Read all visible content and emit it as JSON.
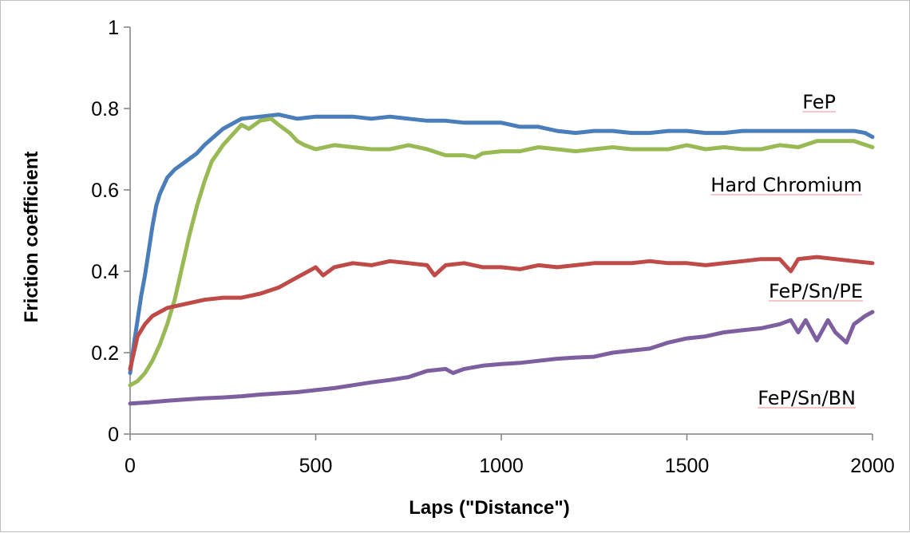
{
  "chart_data": {
    "type": "line",
    "title": "",
    "xlabel": "Laps (\"Distance\")",
    "ylabel": "Friction coefficient",
    "xlim": [
      0,
      2000
    ],
    "ylim": [
      0,
      1
    ],
    "x_ticks": [
      "0",
      "500",
      "1000",
      "1500",
      "2000"
    ],
    "y_ticks": [
      "0",
      "0.2",
      "0.4",
      "0.6",
      "0.8",
      "1"
    ],
    "grid": false,
    "legend": "none (series labelled directly on plot)",
    "series": [
      {
        "name": "FeP",
        "color": "#4a7ebb",
        "x": [
          0,
          10,
          20,
          30,
          40,
          50,
          60,
          70,
          80,
          100,
          120,
          150,
          180,
          200,
          250,
          300,
          350,
          400,
          450,
          500,
          550,
          600,
          650,
          700,
          750,
          800,
          850,
          900,
          950,
          1000,
          1050,
          1100,
          1150,
          1200,
          1250,
          1300,
          1350,
          1400,
          1450,
          1500,
          1550,
          1600,
          1650,
          1700,
          1750,
          1800,
          1850,
          1900,
          1950,
          1980,
          2000
        ],
        "y": [
          0.15,
          0.22,
          0.28,
          0.34,
          0.39,
          0.45,
          0.51,
          0.56,
          0.59,
          0.63,
          0.65,
          0.67,
          0.69,
          0.71,
          0.75,
          0.775,
          0.78,
          0.785,
          0.775,
          0.78,
          0.78,
          0.78,
          0.775,
          0.78,
          0.775,
          0.77,
          0.77,
          0.765,
          0.765,
          0.765,
          0.755,
          0.755,
          0.745,
          0.74,
          0.745,
          0.745,
          0.74,
          0.74,
          0.745,
          0.745,
          0.74,
          0.74,
          0.745,
          0.745,
          0.745,
          0.745,
          0.745,
          0.745,
          0.745,
          0.74,
          0.73
        ]
      },
      {
        "name": "Hard Chromium",
        "color": "#98b954",
        "x": [
          0,
          20,
          40,
          60,
          80,
          100,
          120,
          140,
          160,
          180,
          200,
          220,
          250,
          280,
          300,
          320,
          350,
          380,
          400,
          430,
          450,
          470,
          500,
          550,
          600,
          650,
          700,
          750,
          800,
          850,
          900,
          930,
          950,
          1000,
          1050,
          1100,
          1150,
          1200,
          1250,
          1300,
          1350,
          1400,
          1450,
          1500,
          1550,
          1600,
          1650,
          1700,
          1750,
          1800,
          1850,
          1900,
          1950,
          2000
        ],
        "y": [
          0.12,
          0.13,
          0.15,
          0.18,
          0.22,
          0.27,
          0.33,
          0.41,
          0.49,
          0.56,
          0.62,
          0.67,
          0.71,
          0.74,
          0.76,
          0.75,
          0.77,
          0.775,
          0.76,
          0.74,
          0.72,
          0.71,
          0.7,
          0.71,
          0.705,
          0.7,
          0.7,
          0.71,
          0.7,
          0.685,
          0.685,
          0.68,
          0.69,
          0.695,
          0.695,
          0.705,
          0.7,
          0.695,
          0.7,
          0.705,
          0.7,
          0.7,
          0.7,
          0.71,
          0.7,
          0.705,
          0.7,
          0.7,
          0.71,
          0.705,
          0.72,
          0.72,
          0.72,
          0.705
        ]
      },
      {
        "name": "FeP/Sn/PE",
        "color": "#be4b48",
        "x": [
          0,
          10,
          20,
          40,
          60,
          80,
          100,
          150,
          200,
          250,
          300,
          350,
          400,
          450,
          500,
          520,
          550,
          600,
          650,
          700,
          750,
          800,
          820,
          850,
          900,
          950,
          1000,
          1050,
          1100,
          1150,
          1200,
          1250,
          1300,
          1350,
          1400,
          1450,
          1500,
          1550,
          1600,
          1650,
          1700,
          1750,
          1780,
          1800,
          1850,
          1900,
          1950,
          2000
        ],
        "y": [
          0.16,
          0.2,
          0.24,
          0.27,
          0.29,
          0.3,
          0.31,
          0.32,
          0.33,
          0.335,
          0.335,
          0.345,
          0.36,
          0.385,
          0.41,
          0.39,
          0.41,
          0.42,
          0.415,
          0.425,
          0.42,
          0.415,
          0.39,
          0.415,
          0.42,
          0.41,
          0.41,
          0.405,
          0.415,
          0.41,
          0.415,
          0.42,
          0.42,
          0.42,
          0.425,
          0.42,
          0.42,
          0.415,
          0.42,
          0.425,
          0.43,
          0.43,
          0.4,
          0.43,
          0.435,
          0.43,
          0.425,
          0.42
        ]
      },
      {
        "name": "FeP/Sn/BN",
        "color": "#7d5fa0",
        "x": [
          0,
          50,
          100,
          150,
          200,
          250,
          300,
          350,
          400,
          450,
          500,
          550,
          600,
          650,
          700,
          750,
          800,
          850,
          870,
          900,
          950,
          1000,
          1050,
          1100,
          1150,
          1200,
          1250,
          1300,
          1350,
          1400,
          1450,
          1500,
          1550,
          1600,
          1650,
          1700,
          1750,
          1780,
          1800,
          1820,
          1850,
          1880,
          1900,
          1930,
          1950,
          1980,
          2000
        ],
        "y": [
          0.075,
          0.078,
          0.082,
          0.085,
          0.088,
          0.09,
          0.093,
          0.097,
          0.1,
          0.103,
          0.108,
          0.113,
          0.12,
          0.127,
          0.133,
          0.14,
          0.155,
          0.16,
          0.15,
          0.16,
          0.168,
          0.172,
          0.175,
          0.18,
          0.185,
          0.188,
          0.19,
          0.2,
          0.205,
          0.21,
          0.225,
          0.235,
          0.24,
          0.25,
          0.255,
          0.26,
          0.27,
          0.28,
          0.25,
          0.28,
          0.23,
          0.28,
          0.25,
          0.225,
          0.27,
          0.29,
          0.3
        ]
      }
    ]
  }
}
